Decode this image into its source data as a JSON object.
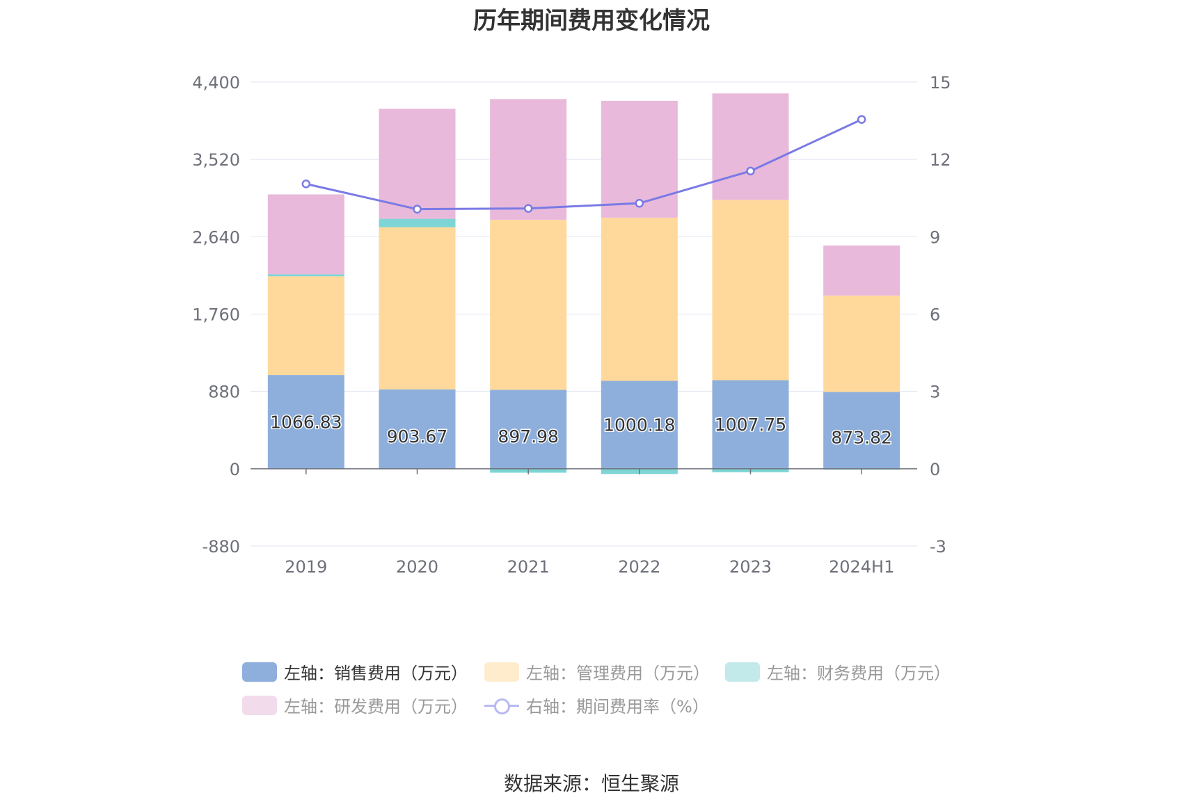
{
  "chart_data": {
    "type": "bar",
    "title": "历年期间费用变化情况",
    "categories": [
      "2019",
      "2020",
      "2021",
      "2022",
      "2023",
      "2024H1"
    ],
    "stacked": true,
    "series": [
      {
        "name": "左轴：销售费用（万元）",
        "axis": "left",
        "color": "#8eafdc",
        "values": [
          1066.83,
          903.67,
          897.98,
          1000.18,
          1007.75,
          873.82
        ],
        "value_labels": [
          "1066.83",
          "903.67",
          "897.98",
          "1000.18",
          "1007.75",
          "873.82"
        ]
      },
      {
        "name": "左轴：管理费用（万元）",
        "axis": "left",
        "color": "#fed99b",
        "values": [
          1123,
          1845,
          1935,
          1857,
          2052,
          1097
        ]
      },
      {
        "name": "左轴：财务费用（万元）",
        "axis": "left",
        "color": "#7dd5d5",
        "values": [
          22,
          95,
          -45,
          -60,
          -40,
          -10
        ]
      },
      {
        "name": "左轴：研发费用（万元）",
        "axis": "left",
        "color": "#e8b9da",
        "values": [
          910,
          1252,
          1374,
          1330,
          1211,
          570
        ]
      },
      {
        "name": "右轴：期间费用率（%）",
        "axis": "right",
        "type": "line",
        "color": "#7a7ae6",
        "values": [
          11.05,
          10.07,
          10.1,
          10.3,
          11.55,
          13.55
        ]
      }
    ],
    "left_axis": {
      "ylim": [
        -880,
        4400
      ],
      "ticks": [
        "-880",
        "0",
        "880",
        "1,760",
        "2,640",
        "3,520",
        "4,400"
      ],
      "tick_values": [
        -880,
        0,
        880,
        1760,
        2640,
        3520,
        4400
      ]
    },
    "right_axis": {
      "ylim": [
        -3,
        15
      ],
      "ticks": [
        "-3",
        "0",
        "3",
        "6",
        "9",
        "12",
        "15"
      ],
      "tick_values": [
        -3,
        0,
        3,
        6,
        9,
        12,
        15
      ]
    },
    "grid": true,
    "legend_position": "bottom"
  },
  "legend": [
    {
      "label": "左轴：销售费用（万元）",
      "color": "#8eafdc",
      "kind": "bar"
    },
    {
      "label": "左轴：管理费用（万元）",
      "color": "#ffeccc",
      "kind": "bar"
    },
    {
      "label": "左轴：财务费用（万元）",
      "color": "#c2eaea",
      "kind": "bar"
    },
    {
      "label": "左轴：研发费用（万元）",
      "color": "#f2dcec",
      "kind": "bar"
    },
    {
      "label": "右轴：期间费用率（%）",
      "color": "#b8b8f3",
      "kind": "line"
    }
  ],
  "source": "数据来源：恒生聚源"
}
